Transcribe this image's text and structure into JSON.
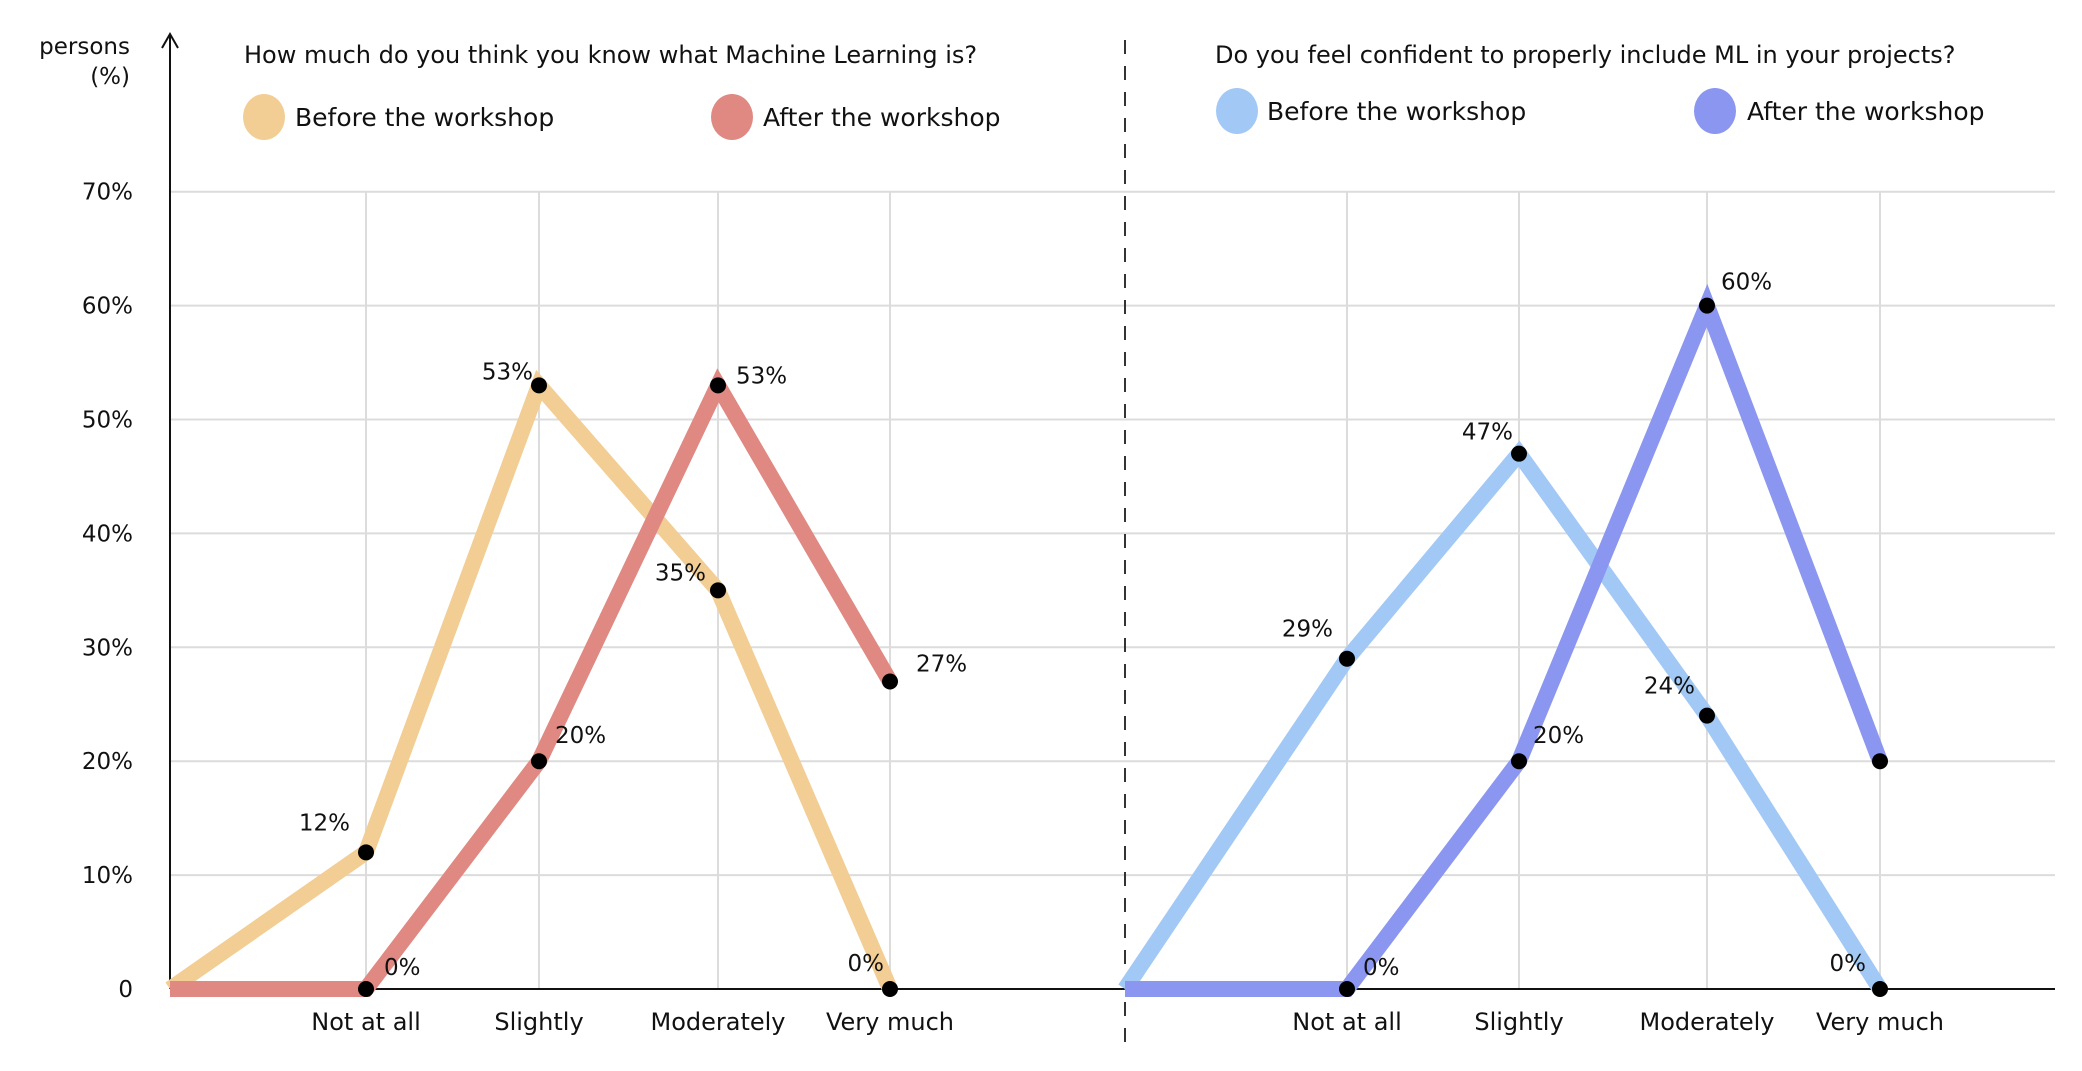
{
  "chart_data": [
    {
      "type": "line",
      "title": "How much do you think you know what Machine Learning is?",
      "ylabel": "persons (%)",
      "ylabel_lines": [
        "persons",
        "(%)"
      ],
      "categories": [
        "Not at all",
        "Slightly",
        "Moderately",
        "Very much"
      ],
      "ylim": [
        0,
        70
      ],
      "yticks": [
        "0",
        "10%",
        "20%",
        "30%",
        "40%",
        "50%",
        "60%",
        "70%"
      ],
      "grid": true,
      "legend_placement": "top",
      "series": [
        {
          "name": "Before the workshop",
          "color": "#f2cd94",
          "start": 0,
          "values": [
            12,
            53,
            35,
            0
          ],
          "labels": [
            "12%",
            "53%",
            "35%",
            "0%"
          ]
        },
        {
          "name": "After the workshop",
          "color": "#e08882",
          "start": 0,
          "values": [
            0,
            20,
            53,
            27
          ],
          "labels": [
            "0%",
            "20%",
            "53%",
            "27%"
          ]
        }
      ]
    },
    {
      "type": "line",
      "title": "Do you feel confident to properly include ML in your projects?",
      "categories": [
        "Not at all",
        "Slightly",
        "Moderately",
        "Very much"
      ],
      "ylim": [
        0,
        70
      ],
      "grid": true,
      "legend_placement": "top",
      "series": [
        {
          "name": "Before the workshop",
          "color": "#a2c8f5",
          "start": 0,
          "values": [
            29,
            47,
            24,
            0
          ],
          "labels": [
            "29%",
            "47%",
            "24%",
            "0%"
          ]
        },
        {
          "name": "After the workshop",
          "color": "#8b96f0",
          "start": 0,
          "values": [
            0,
            20,
            60,
            20
          ],
          "labels": [
            "0%",
            "20%",
            "60%",
            null
          ]
        }
      ]
    }
  ]
}
